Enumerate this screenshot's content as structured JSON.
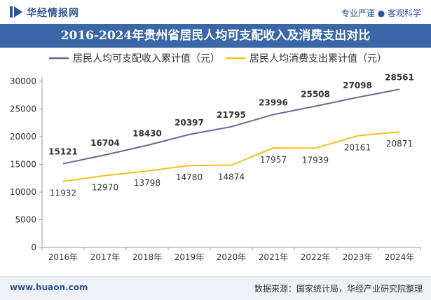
{
  "header": {
    "brand": "华经情报网",
    "tagline": "专业严谨 ● 客观科学"
  },
  "footer": {
    "url": "www.huaon.com",
    "source": "数据来源：国家统计局，华经产业研究院整理"
  },
  "colors": {
    "income": "#5a6f8f",
    "expense": "#f5c01b",
    "title_bg": "#3a67a8"
  },
  "chart_data": {
    "type": "line",
    "title": "2016-2024年贵州省居民人均可支配收入及消费支出对比",
    "categories": [
      "2016年",
      "2017年",
      "2018年",
      "2019年",
      "2020年",
      "2021年",
      "2022年",
      "2023年",
      "2024年"
    ],
    "series": [
      {
        "name": "居民人均可支配收入累计值（元）",
        "values": [
          15121,
          16704,
          18430,
          20397,
          21795,
          23996,
          25508,
          27098,
          28561
        ]
      },
      {
        "name": "居民人均消费支出累计值（元）",
        "values": [
          11932,
          12970,
          13798,
          14780,
          14874,
          17957,
          17939,
          20161,
          20871
        ]
      }
    ],
    "yticks": [
      0,
      5000,
      10000,
      15000,
      20000,
      25000,
      30000
    ],
    "ylim": [
      0,
      30000
    ],
    "legend": "top",
    "grid": false
  }
}
